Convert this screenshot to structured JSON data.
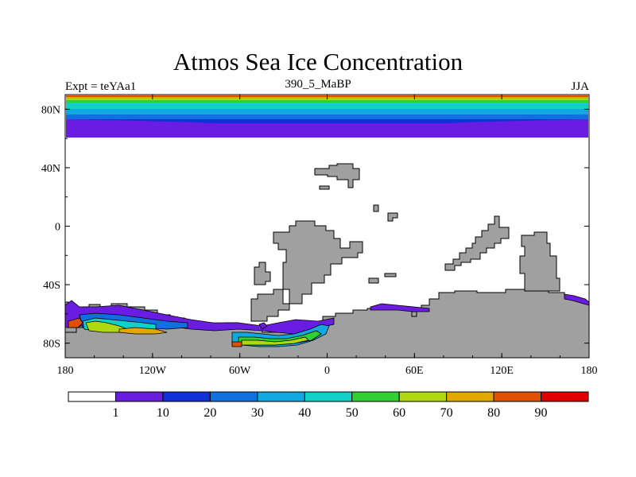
{
  "title": "Atmos Sea Ice Concentration",
  "subtitle_left": "Expt = teYAa1",
  "subtitle_center": "390_5_MaBP",
  "subtitle_right": "JJA",
  "axes": {
    "lon_ticks": [
      {
        "lon": -180,
        "label": "180"
      },
      {
        "lon": -120,
        "label": "120W"
      },
      {
        "lon": -60,
        "label": "60W"
      },
      {
        "lon": 0,
        "label": "0"
      },
      {
        "lon": 60,
        "label": "60E"
      },
      {
        "lon": 120,
        "label": "120E"
      },
      {
        "lon": 180,
        "label": "180"
      }
    ],
    "lat_ticks": [
      {
        "lat": 80,
        "label": "80N"
      },
      {
        "lat": 40,
        "label": "40N"
      },
      {
        "lat": 0,
        "label": "0"
      },
      {
        "lat": -40,
        "label": "40S"
      },
      {
        "lat": -80,
        "label": "80S"
      }
    ]
  },
  "colorbar": {
    "colors": [
      "#ffffff",
      "#6a1de0",
      "#1030d8",
      "#1070e0",
      "#10a8e0",
      "#10d0c8",
      "#30d030",
      "#b0d810",
      "#e0a800",
      "#e05000",
      "#e00000"
    ],
    "labels": [
      "1",
      "10",
      "20",
      "30",
      "40",
      "50",
      "60",
      "70",
      "80",
      "90"
    ]
  },
  "colors": {
    "land": "#a0a0a0",
    "arctic_bands": [
      "#e05000",
      "#e0a800",
      "#b0d810",
      "#30d030",
      "#10d0c8",
      "#10a8e0",
      "#1070e0",
      "#1030d8",
      "#6a1de0"
    ]
  }
}
